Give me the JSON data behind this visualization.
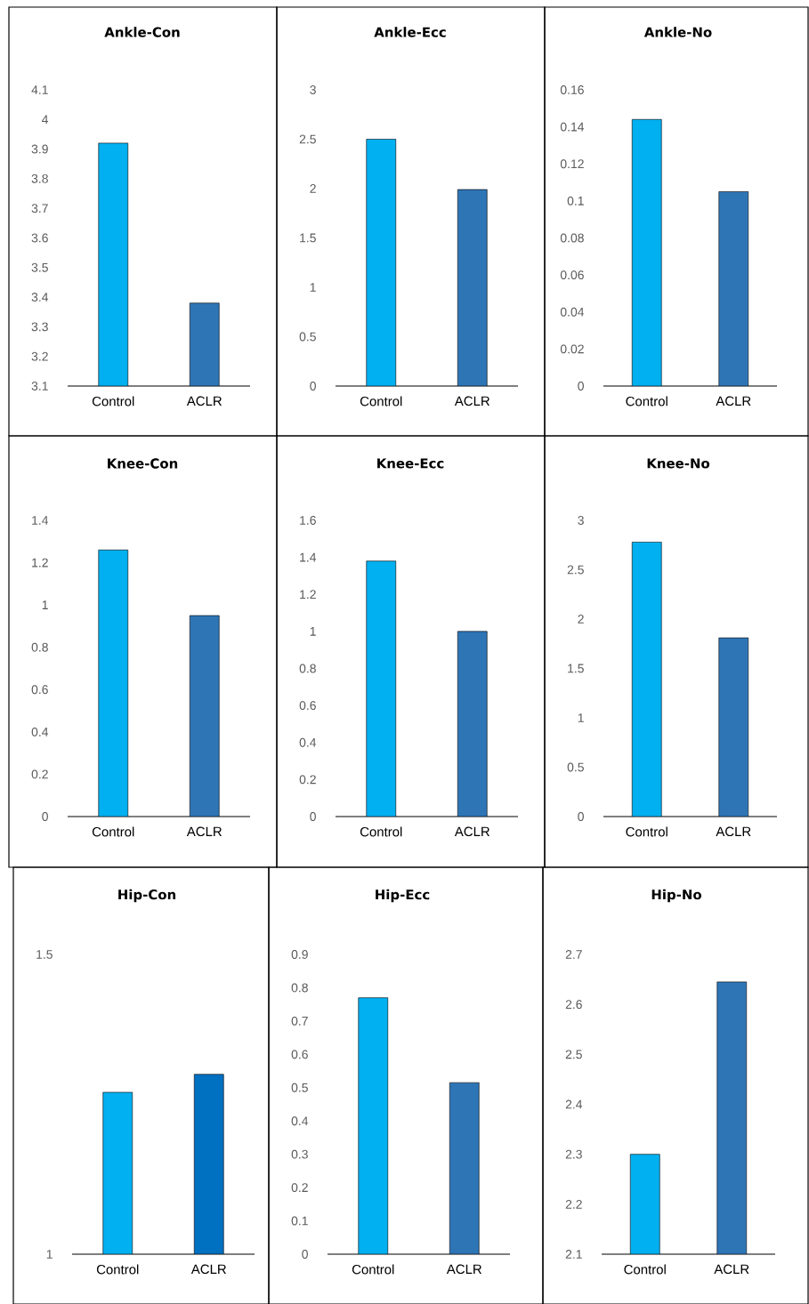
{
  "chart_data": [
    {
      "type": "bar",
      "title": "Ankle-Con",
      "categories": [
        "Control",
        "ACLR"
      ],
      "values": [
        3.92,
        3.38
      ],
      "colors": [
        "#00b0f0",
        "#2e75b6"
      ],
      "ylim": [
        3.1,
        4.1
      ],
      "yticks": [
        3.1,
        3.2,
        3.3,
        3.4,
        3.5,
        3.6,
        3.7,
        3.8,
        3.9,
        4,
        4.1
      ]
    },
    {
      "type": "bar",
      "title": "Ankle-Ecc",
      "categories": [
        "Control",
        "ACLR"
      ],
      "values": [
        2.5,
        1.99
      ],
      "colors": [
        "#00b0f0",
        "#2e75b6"
      ],
      "ylim": [
        0,
        3
      ],
      "yticks": [
        0,
        0.5,
        1,
        1.5,
        2,
        2.5,
        3
      ]
    },
    {
      "type": "bar",
      "title": "Ankle-No",
      "categories": [
        "Control",
        "ACLR"
      ],
      "values": [
        0.144,
        0.105
      ],
      "colors": [
        "#00b0f0",
        "#2e75b6"
      ],
      "ylim": [
        0,
        0.16
      ],
      "yticks": [
        0,
        0.02,
        0.04,
        0.06,
        0.08,
        0.1,
        0.12,
        0.14,
        0.16
      ]
    },
    {
      "type": "bar",
      "title": "Knee-Con",
      "categories": [
        "Control",
        "ACLR"
      ],
      "values": [
        1.26,
        0.95
      ],
      "colors": [
        "#00b0f0",
        "#2e75b6"
      ],
      "ylim": [
        0,
        1.4
      ],
      "yticks": [
        0,
        0.2,
        0.4,
        0.6,
        0.8,
        1,
        1.2,
        1.4
      ]
    },
    {
      "type": "bar",
      "title": "Knee-Ecc",
      "categories": [
        "Control",
        "ACLR"
      ],
      "values": [
        1.38,
        1.0
      ],
      "colors": [
        "#00b0f0",
        "#2e75b6"
      ],
      "ylim": [
        0,
        1.6
      ],
      "yticks": [
        0,
        0.2,
        0.4,
        0.6,
        0.8,
        1,
        1.2,
        1.4,
        1.6
      ]
    },
    {
      "type": "bar",
      "title": "Knee-No",
      "categories": [
        "Control",
        "ACLR"
      ],
      "values": [
        2.78,
        1.81
      ],
      "colors": [
        "#00b0f0",
        "#2e75b6"
      ],
      "ylim": [
        0,
        3
      ],
      "yticks": [
        0,
        0.5,
        1,
        1.5,
        2,
        2.5,
        3
      ]
    },
    {
      "type": "bar",
      "title": "Hip-Con",
      "categories": [
        "Control",
        "ACLR"
      ],
      "values": [
        1.27,
        1.3
      ],
      "colors": [
        "#00b0f0",
        "#0070c0"
      ],
      "ylim": [
        1,
        1.5
      ],
      "yticks": [
        1,
        1.5
      ]
    },
    {
      "type": "bar",
      "title": "Hip-Ecc",
      "categories": [
        "Control",
        "ACLR"
      ],
      "values": [
        0.77,
        0.515
      ],
      "colors": [
        "#00b0f0",
        "#2e75b6"
      ],
      "ylim": [
        0,
        0.9
      ],
      "yticks": [
        0,
        0.1,
        0.2,
        0.3,
        0.4,
        0.5,
        0.6,
        0.7,
        0.8,
        0.9
      ]
    },
    {
      "type": "bar",
      "title": "Hip-No",
      "categories": [
        "Control",
        "ACLR"
      ],
      "values": [
        2.3,
        2.645
      ],
      "colors": [
        "#00b0f0",
        "#2e75b6"
      ],
      "ylim": [
        2.1,
        2.7
      ],
      "yticks": [
        2.1,
        2.2,
        2.3,
        2.4,
        2.5,
        2.6,
        2.7
      ]
    }
  ]
}
